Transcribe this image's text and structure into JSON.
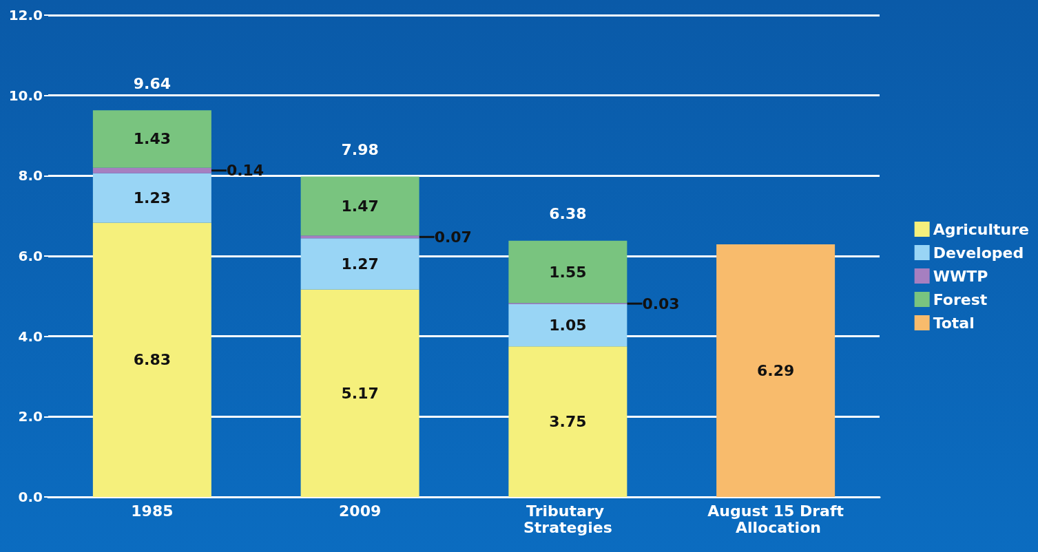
{
  "chart_data": {
    "type": "bar",
    "stacked": true,
    "categories": [
      "1985",
      "2009",
      "Tributary Strategies",
      "August 15 Draft Allocation"
    ],
    "series": [
      {
        "name": "Agriculture",
        "color": "#f5f07c",
        "values": [
          6.83,
          5.17,
          3.75,
          null
        ]
      },
      {
        "name": "Developed",
        "color": "#99d5f5",
        "values": [
          1.23,
          1.27,
          1.05,
          null
        ]
      },
      {
        "name": "WWTP",
        "color": "#a67fc0",
        "values": [
          0.14,
          0.07,
          0.03,
          null
        ]
      },
      {
        "name": "Forest",
        "color": "#79c47f",
        "values": [
          1.43,
          1.47,
          1.55,
          null
        ]
      },
      {
        "name": "Total",
        "color": "#f8bb6c",
        "values": [
          null,
          null,
          null,
          6.29
        ]
      }
    ],
    "totals": [
      "9.64",
      "7.98",
      "6.38",
      null
    ],
    "data_labels": true,
    "ylim": [
      0,
      12
    ],
    "yticks": [
      {
        "value": 0,
        "label": "0.0"
      },
      {
        "value": 2,
        "label": "2.0"
      },
      {
        "value": 4,
        "label": "4.0"
      },
      {
        "value": 6,
        "label": "6.0"
      },
      {
        "value": 8,
        "label": "8.0"
      },
      {
        "value": 10,
        "label": "10.0"
      },
      {
        "value": 12,
        "label": "12.0"
      }
    ],
    "grid": "y",
    "legend": "right"
  }
}
